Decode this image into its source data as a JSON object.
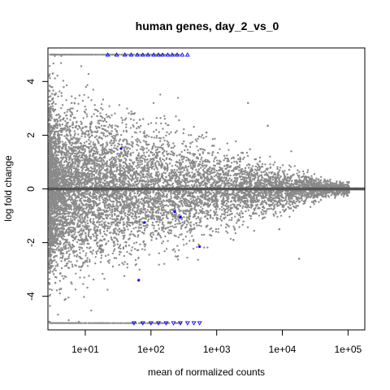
{
  "chart_data": {
    "type": "scatter",
    "title": "human genes, day_2_vs_0",
    "xlabel": "mean of normalized counts",
    "ylabel": "log fold change",
    "x_scale": "log10",
    "xlim": [
      2.7,
      180000
    ],
    "ylim": [
      -5.25,
      5.25
    ],
    "x_ticks": [
      {
        "value": 10,
        "label": "1e+01"
      },
      {
        "value": 100,
        "label": "1e+02"
      },
      {
        "value": 1000,
        "label": "1e+03"
      },
      {
        "value": 10000,
        "label": "1e+04"
      },
      {
        "value": 100000,
        "label": "1e+05"
      }
    ],
    "y_ticks": [
      {
        "value": -4,
        "label": "-4"
      },
      {
        "value": -2,
        "label": "-2"
      },
      {
        "value": 0,
        "label": "0"
      },
      {
        "value": 2,
        "label": "2"
      },
      {
        "value": 4,
        "label": "4"
      }
    ],
    "grid": false,
    "reference_line": {
      "y": 0,
      "color": "#555555"
    },
    "colors": {
      "not_significant": "#8a8a8a",
      "significant": "#0000ff"
    },
    "series": [
      {
        "significant": false,
        "x": [
          3.2,
          3.5,
          4.1,
          5.0,
          6.2,
          8.1,
          12,
          18,
          25,
          33,
          45,
          60,
          80,
          110,
          150,
          220,
          320,
          480,
          700,
          1000,
          1500,
          2200,
          3200,
          5000,
          8000,
          12000,
          20000,
          35000,
          60000,
          100000,
          130000
        ],
        "y": [
          4.3,
          -3.5,
          2.7,
          -4.1,
          3.2,
          -2.9,
          2.2,
          -2.1,
          1.8,
          -1.6,
          1.4,
          -1.2,
          1.1,
          -1.0,
          0.9,
          -0.8,
          0.7,
          -0.6,
          0.6,
          -0.5,
          0.5,
          -0.4,
          0.35,
          -0.3,
          0.25,
          -0.2,
          0.15,
          0.1,
          -0.08,
          0.05,
          0.02
        ]
      },
      {
        "significant": false,
        "x": [
          3000,
          6000,
          700,
          400,
          1800,
          12000,
          18000,
          9000
        ],
        "y": [
          3.2,
          2.35,
          2.1,
          1.7,
          -1.9,
          0.4,
          -2.6,
          -1.5
        ]
      },
      {
        "significant": true,
        "x": [
          22,
          30,
          40,
          50,
          62,
          75,
          90,
          110,
          130,
          150,
          180,
          210,
          250,
          300,
          360
        ],
        "y": [
          5.0,
          5.0,
          5.0,
          5.0,
          5.0,
          5.0,
          5.0,
          5.0,
          5.0,
          5.0,
          5.0,
          5.0,
          5.0,
          5.0,
          5.0
        ]
      },
      {
        "significant": true,
        "x": [
          55,
          75,
          100,
          130,
          170,
          220,
          280,
          360,
          450,
          550
        ],
        "y": [
          -5.0,
          -5.0,
          -5.0,
          -5.0,
          -5.0,
          -5.0,
          -5.0,
          -5.0,
          -5.0,
          -5.0
        ]
      },
      {
        "significant": true,
        "x": [
          35,
          80,
          230,
          280,
          550,
          65
        ],
        "y": [
          1.5,
          -1.25,
          -0.85,
          -1.05,
          -2.15,
          -3.4
        ]
      }
    ]
  }
}
